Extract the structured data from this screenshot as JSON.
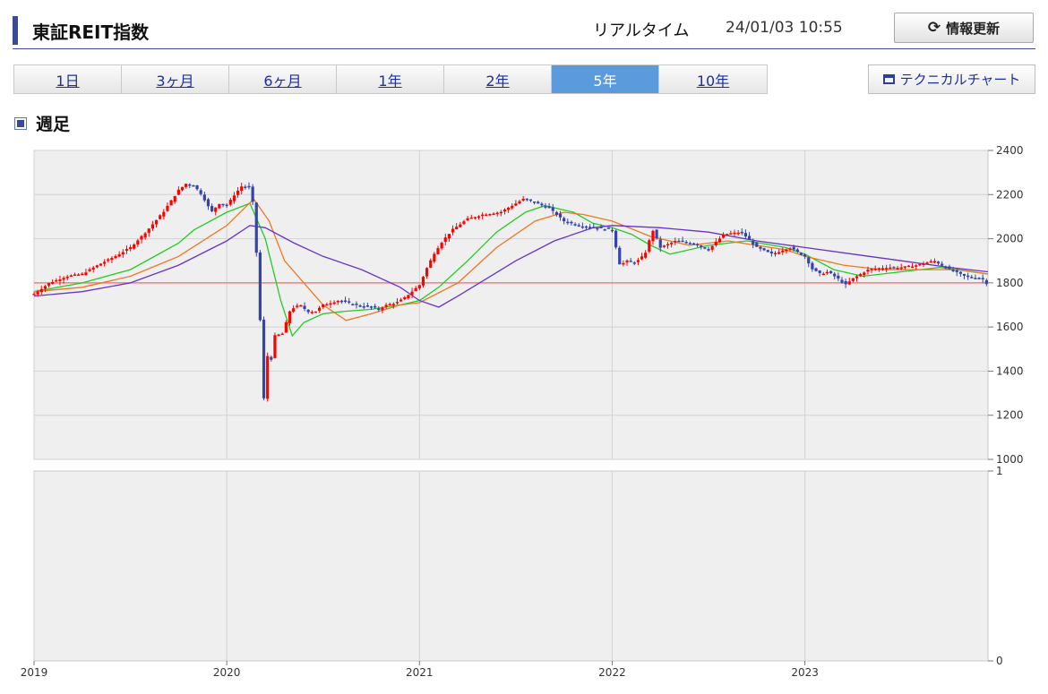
{
  "header": {
    "title": "東証REIT指数",
    "realtime_label": "リアルタイム",
    "datetime": "24/01/03 10:55",
    "refresh_label": "情報更新",
    "accent_color": "#3b4a98"
  },
  "tabs": [
    {
      "label": "1日",
      "active": false
    },
    {
      "label": "3ヶ月",
      "active": false
    },
    {
      "label": "6ヶ月",
      "active": false
    },
    {
      "label": "1年",
      "active": false
    },
    {
      "label": "2年",
      "active": false
    },
    {
      "label": "5年",
      "active": true
    },
    {
      "label": "10年",
      "active": false
    }
  ],
  "technical_button_label": "テクニカルチャート",
  "section_label": "週足",
  "chart_data": {
    "type": "line",
    "period": "weekly",
    "price_panel": {
      "ylim": [
        1000,
        2400
      ],
      "yticks": [
        1000,
        1200,
        1400,
        1600,
        1800,
        2000,
        2200,
        2400
      ],
      "reference_line": 1800,
      "reference_line_color": "#f08080",
      "up_color": "#ff0000",
      "down_color": "#3344aa"
    },
    "volume_panel": {
      "ylim": [
        0,
        1
      ],
      "yticks": [
        0,
        1
      ]
    },
    "x_range": [
      2019.0,
      2023.95
    ],
    "xticks": [
      {
        "label": "2019",
        "x": 2019
      },
      {
        "label": "2020",
        "x": 2020
      },
      {
        "label": "2021",
        "x": 2021
      },
      {
        "label": "2022",
        "x": 2022
      },
      {
        "label": "2023",
        "x": 2023
      }
    ],
    "series": [
      {
        "kind": "price",
        "x": [
          2019.0,
          2019.08,
          2019.17,
          2019.25,
          2019.33,
          2019.42,
          2019.5,
          2019.58,
          2019.67,
          2019.75,
          2019.79,
          2019.83,
          2019.87,
          2019.92,
          2019.96,
          2020.0,
          2020.04,
          2020.08,
          2020.12,
          2020.14,
          2020.17,
          2020.19,
          2020.21,
          2020.23,
          2020.25,
          2020.29,
          2020.33,
          2020.38,
          2020.42,
          2020.46,
          2020.5,
          2020.58,
          2020.67,
          2020.75,
          2020.79,
          2020.83,
          2020.88,
          2020.92,
          2020.96,
          2021.0,
          2021.04,
          2021.08,
          2021.12,
          2021.17,
          2021.25,
          2021.33,
          2021.42,
          2021.5,
          2021.54,
          2021.58,
          2021.67,
          2021.75,
          2021.83,
          2021.92,
          2022.0,
          2022.02,
          2022.04,
          2022.08,
          2022.12,
          2022.17,
          2022.21,
          2022.25,
          2022.33,
          2022.42,
          2022.5,
          2022.58,
          2022.67,
          2022.75,
          2022.83,
          2022.92,
          2023.0,
          2023.04,
          2023.08,
          2023.12,
          2023.17,
          2023.21,
          2023.25,
          2023.33,
          2023.42,
          2023.5,
          2023.58,
          2023.67,
          2023.75,
          2023.83,
          2023.92,
          2023.95
        ],
        "values": [
          1750,
          1800,
          1830,
          1840,
          1880,
          1920,
          1960,
          2030,
          2120,
          2220,
          2250,
          2240,
          2200,
          2120,
          2160,
          2150,
          2200,
          2240,
          2230,
          2140,
          1700,
          1250,
          1470,
          1450,
          1560,
          1570,
          1680,
          1700,
          1670,
          1670,
          1700,
          1720,
          1700,
          1690,
          1680,
          1700,
          1710,
          1730,
          1760,
          1790,
          1870,
          1940,
          1990,
          2040,
          2090,
          2110,
          2120,
          2160,
          2180,
          2170,
          2140,
          2080,
          2060,
          2050,
          2040,
          1960,
          1880,
          1900,
          1890,
          1930,
          2040,
          1960,
          1990,
          1980,
          1950,
          2020,
          2030,
          1960,
          1930,
          1960,
          1920,
          1860,
          1840,
          1850,
          1820,
          1790,
          1820,
          1860,
          1870,
          1870,
          1880,
          1900,
          1860,
          1830,
          1820,
          1790
        ]
      },
      {
        "name": "",
        "kind": "ma-short",
        "color": "#22cc22",
        "x": [
          2019.0,
          2019.25,
          2019.5,
          2019.75,
          2019.83,
          2020.0,
          2020.12,
          2020.2,
          2020.28,
          2020.34,
          2020.4,
          2020.5,
          2020.6,
          2020.75,
          2020.9,
          2021.0,
          2021.1,
          2021.25,
          2021.4,
          2021.55,
          2021.65,
          2021.8,
          2021.9,
          2022.0,
          2022.1,
          2022.2,
          2022.3,
          2022.5,
          2022.7,
          2022.9,
          2023.0,
          2023.15,
          2023.3,
          2023.5,
          2023.7,
          2023.95
        ],
        "values": [
          1760,
          1800,
          1860,
          1980,
          2040,
          2120,
          2160,
          2000,
          1720,
          1560,
          1620,
          1660,
          1670,
          1680,
          1700,
          1720,
          1780,
          1900,
          2030,
          2120,
          2150,
          2120,
          2070,
          2050,
          2020,
          1970,
          1930,
          1970,
          1990,
          1960,
          1930,
          1860,
          1830,
          1850,
          1870,
          1840
        ]
      },
      {
        "name": "",
        "kind": "ma-mid",
        "color": "#ee7722",
        "x": [
          2019.0,
          2019.25,
          2019.5,
          2019.75,
          2020.0,
          2020.14,
          2020.22,
          2020.3,
          2020.4,
          2020.5,
          2020.62,
          2020.75,
          2020.9,
          2021.0,
          2021.2,
          2021.4,
          2021.6,
          2021.75,
          2021.85,
          2022.0,
          2022.2,
          2022.4,
          2022.6,
          2022.75,
          2022.9,
          2023.0,
          2023.2,
          2023.4,
          2023.6,
          2023.8,
          2023.95
        ],
        "values": [
          1760,
          1780,
          1830,
          1920,
          2060,
          2180,
          2080,
          1900,
          1800,
          1700,
          1630,
          1660,
          1700,
          1710,
          1800,
          1960,
          2080,
          2120,
          2110,
          2080,
          2010,
          1970,
          1990,
          1970,
          1950,
          1920,
          1880,
          1860,
          1860,
          1860,
          1840
        ]
      },
      {
        "name": "",
        "kind": "ma-long",
        "color": "#6633cc",
        "x": [
          2019.0,
          2019.25,
          2019.5,
          2019.75,
          2020.0,
          2020.12,
          2020.2,
          2020.35,
          2020.5,
          2020.7,
          2020.9,
          2021.0,
          2021.1,
          2021.2,
          2021.35,
          2021.5,
          2021.7,
          2021.9,
          2022.0,
          2022.25,
          2022.5,
          2022.75,
          2023.0,
          2023.25,
          2023.5,
          2023.75,
          2023.95
        ],
        "values": [
          1740,
          1760,
          1800,
          1880,
          1990,
          2060,
          2050,
          1980,
          1920,
          1860,
          1780,
          1720,
          1690,
          1740,
          1820,
          1900,
          1990,
          2050,
          2060,
          2050,
          2030,
          1990,
          1960,
          1930,
          1900,
          1870,
          1850
        ]
      }
    ]
  }
}
